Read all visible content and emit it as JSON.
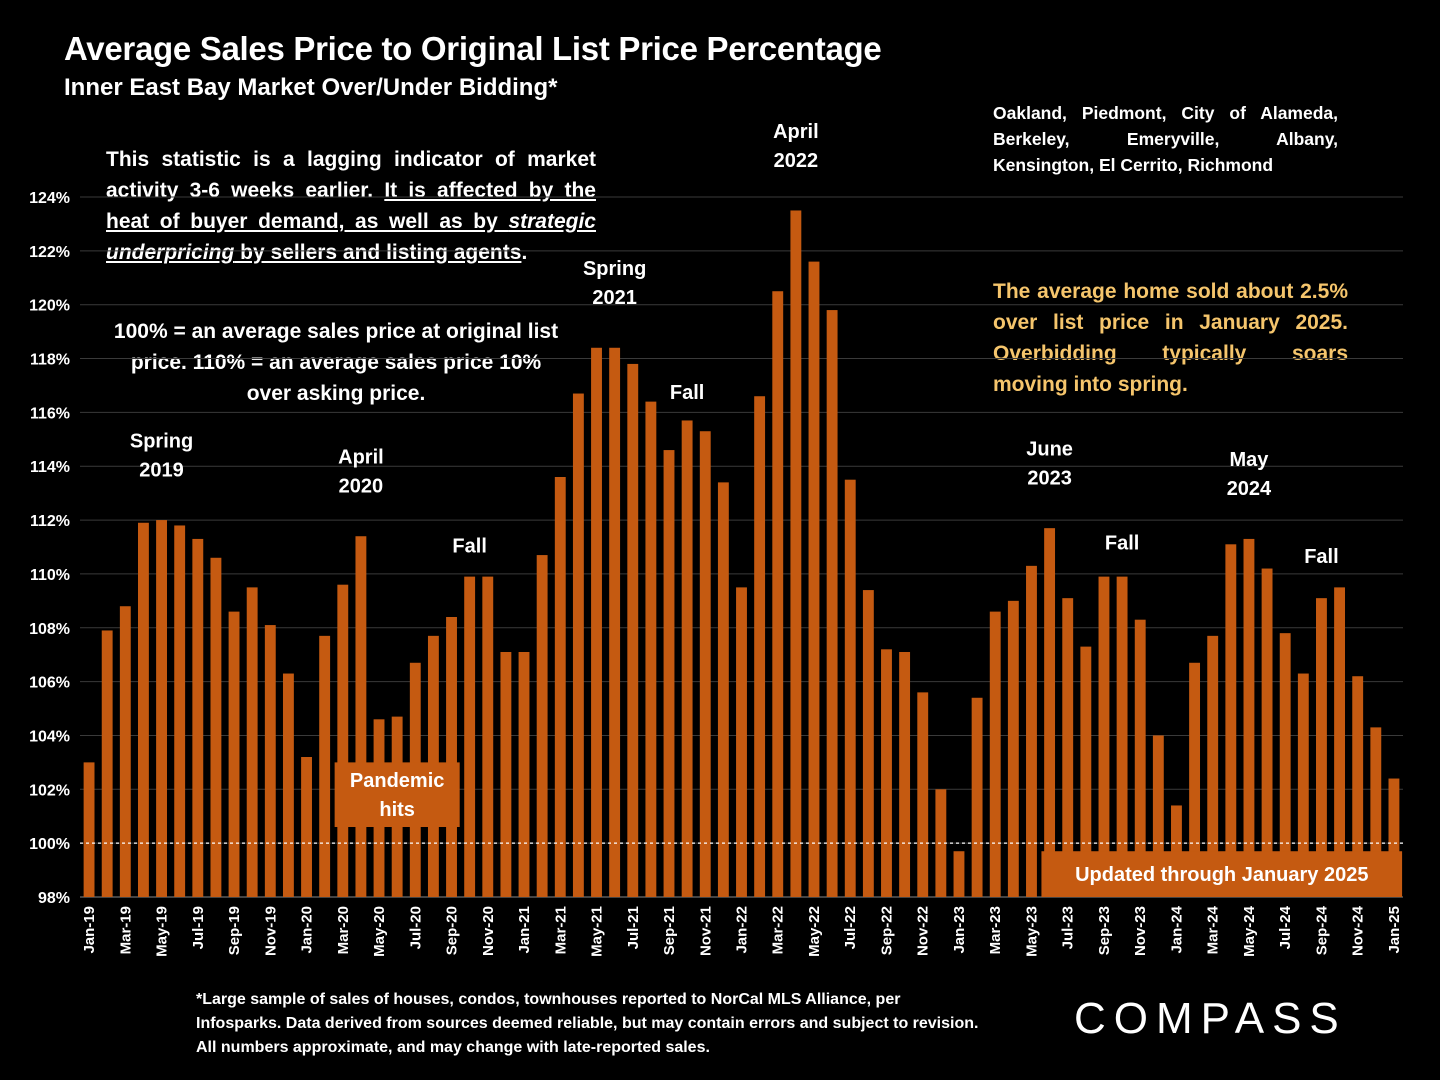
{
  "title": "Average Sales Price to Original List Price Percentage",
  "subtitle": "Inner East Bay Market Over/Under Bidding*",
  "region_note": "Oakland, Piedmont, City of Alameda, Berkeley, Emeryville, Albany, Kensington, El Cerrito, Richmond",
  "lagging_note": {
    "part1": "This statistic is a lagging indicator of market activity 3-6 weeks earlier. ",
    "part2": "It is affected by the heat of buyer demand, as well as by ",
    "part3": "strategic underpricing",
    "part4": " by sellers and listing agents",
    "part5": "."
  },
  "explain_note": "100% = an average sales price at original list price. 110% = an average sales price 10% over asking price.",
  "highlight_note": "The average home sold about 2.5% over list price in January 2025. Overbidding typically soars moving into spring.",
  "footnote": "*Large sample of sales of houses, condos, townhouses reported to NorCal MLS Alliance, per Infosparks. Data derived from sources deemed reliable, but may contain errors and subject to revision. All numbers approximate, and may change with late-reported sales.",
  "logo": "COMPASS",
  "colors": {
    "bar": "#c55a11",
    "highlight_text": "#f5c56c",
    "grid": "#3a3a3a",
    "reference_line": "#ffffff"
  },
  "chart_data": {
    "type": "bar",
    "categories": [
      "Jan-19",
      "Feb-19",
      "Mar-19",
      "Apr-19",
      "May-19",
      "Jun-19",
      "Jul-19",
      "Aug-19",
      "Sep-19",
      "Oct-19",
      "Nov-19",
      "Dec-19",
      "Jan-20",
      "Feb-20",
      "Mar-20",
      "Apr-20",
      "May-20",
      "Jun-20",
      "Jul-20",
      "Aug-20",
      "Sep-20",
      "Oct-20",
      "Nov-20",
      "Dec-20",
      "Jan-21",
      "Feb-21",
      "Mar-21",
      "Apr-21",
      "May-21",
      "Jun-21",
      "Jul-21",
      "Aug-21",
      "Sep-21",
      "Oct-21",
      "Nov-21",
      "Dec-21",
      "Jan-22",
      "Feb-22",
      "Mar-22",
      "Apr-22",
      "May-22",
      "Jun-22",
      "Jul-22",
      "Aug-22",
      "Sep-22",
      "Oct-22",
      "Nov-22",
      "Dec-22",
      "Jan-23",
      "Feb-23",
      "Mar-23",
      "Apr-23",
      "May-23",
      "Jun-23",
      "Jul-23",
      "Aug-23",
      "Sep-23",
      "Oct-23",
      "Nov-23",
      "Dec-23",
      "Jan-24",
      "Feb-24",
      "Mar-24",
      "Apr-24",
      "May-24",
      "Jun-24",
      "Jul-24",
      "Aug-24",
      "Sep-24",
      "Oct-24",
      "Nov-24",
      "Dec-24",
      "Jan-25"
    ],
    "x_tick_labels": [
      "Jan-19",
      "Mar-19",
      "May-19",
      "Jul-19",
      "Sep-19",
      "Nov-19",
      "Jan-20",
      "Mar-20",
      "May-20",
      "Jul-20",
      "Sep-20",
      "Nov-20",
      "Jan-21",
      "Mar-21",
      "May-21",
      "Jul-21",
      "Sep-21",
      "Nov-21",
      "Jan-22",
      "Mar-22",
      "May-22",
      "Jul-22",
      "Sep-22",
      "Nov-22",
      "Jan-23",
      "Mar-23",
      "May-23",
      "Jul-23",
      "Sep-23",
      "Nov-23",
      "Jan-24",
      "Mar-24",
      "May-24",
      "Jul-24",
      "Sep-24",
      "Nov-24",
      "Jan-25"
    ],
    "values": [
      103.0,
      107.9,
      108.8,
      111.9,
      112.0,
      111.8,
      111.3,
      110.6,
      108.6,
      109.5,
      108.1,
      106.3,
      103.2,
      107.7,
      109.6,
      111.4,
      104.6,
      104.7,
      106.7,
      107.7,
      108.4,
      109.9,
      109.9,
      107.1,
      107.1,
      110.7,
      113.6,
      116.7,
      118.4,
      118.4,
      117.8,
      116.4,
      114.6,
      115.7,
      115.3,
      113.4,
      109.5,
      116.6,
      120.5,
      123.5,
      121.6,
      119.8,
      113.5,
      109.4,
      107.2,
      107.1,
      105.6,
      102.0,
      99.7,
      105.4,
      108.6,
      109.0,
      110.3,
      111.7,
      109.1,
      107.3,
      109.9,
      109.9,
      108.3,
      104.0,
      101.4,
      106.7,
      107.7,
      111.1,
      111.3,
      110.2,
      107.8,
      106.3,
      109.1,
      109.5,
      106.2,
      104.3,
      102.4
    ],
    "ylim": [
      98,
      125
    ],
    "y_ticks": [
      98,
      100,
      102,
      104,
      106,
      108,
      110,
      112,
      114,
      116,
      118,
      120,
      122,
      124
    ],
    "y_tick_labels": [
      "98%",
      "100%",
      "102%",
      "104%",
      "106%",
      "108%",
      "110%",
      "112%",
      "114%",
      "116%",
      "118%",
      "120%",
      "122%",
      "124%"
    ],
    "reference_value": 100,
    "grid": true,
    "annotations": [
      {
        "index": 4,
        "value": 114.7,
        "lines": [
          "Spring",
          "2019"
        ]
      },
      {
        "index": 15,
        "value": 114.1,
        "lines": [
          "April",
          "2020"
        ]
      },
      {
        "index": 21,
        "value": 110.8,
        "lines": [
          "Fall"
        ]
      },
      {
        "index": 29,
        "value": 121.1,
        "lines": [
          "Spring",
          "2021"
        ]
      },
      {
        "index": 33,
        "value": 116.5,
        "lines": [
          "Fall"
        ]
      },
      {
        "index": 39,
        "value": 126.2,
        "lines": [
          "April",
          "2022"
        ]
      },
      {
        "index": 53,
        "value": 114.4,
        "lines": [
          "June",
          "2023"
        ]
      },
      {
        "index": 57,
        "value": 110.9,
        "lines": [
          "Fall"
        ]
      },
      {
        "index": 64,
        "value": 114.0,
        "lines": [
          "May",
          "2024"
        ]
      },
      {
        "index": 68,
        "value": 110.4,
        "lines": [
          "Fall"
        ]
      }
    ],
    "callouts": [
      {
        "text_lines": [
          "Pandemic",
          "hits"
        ],
        "from_index": 14,
        "to_index": 20,
        "y_top": 103.0,
        "y_bottom": 100.6
      },
      {
        "text_lines": [
          "Updated through January 2025"
        ],
        "from_index": 53,
        "to_index": 72,
        "y_top": 99.7,
        "y_bottom": 98.0
      }
    ]
  }
}
